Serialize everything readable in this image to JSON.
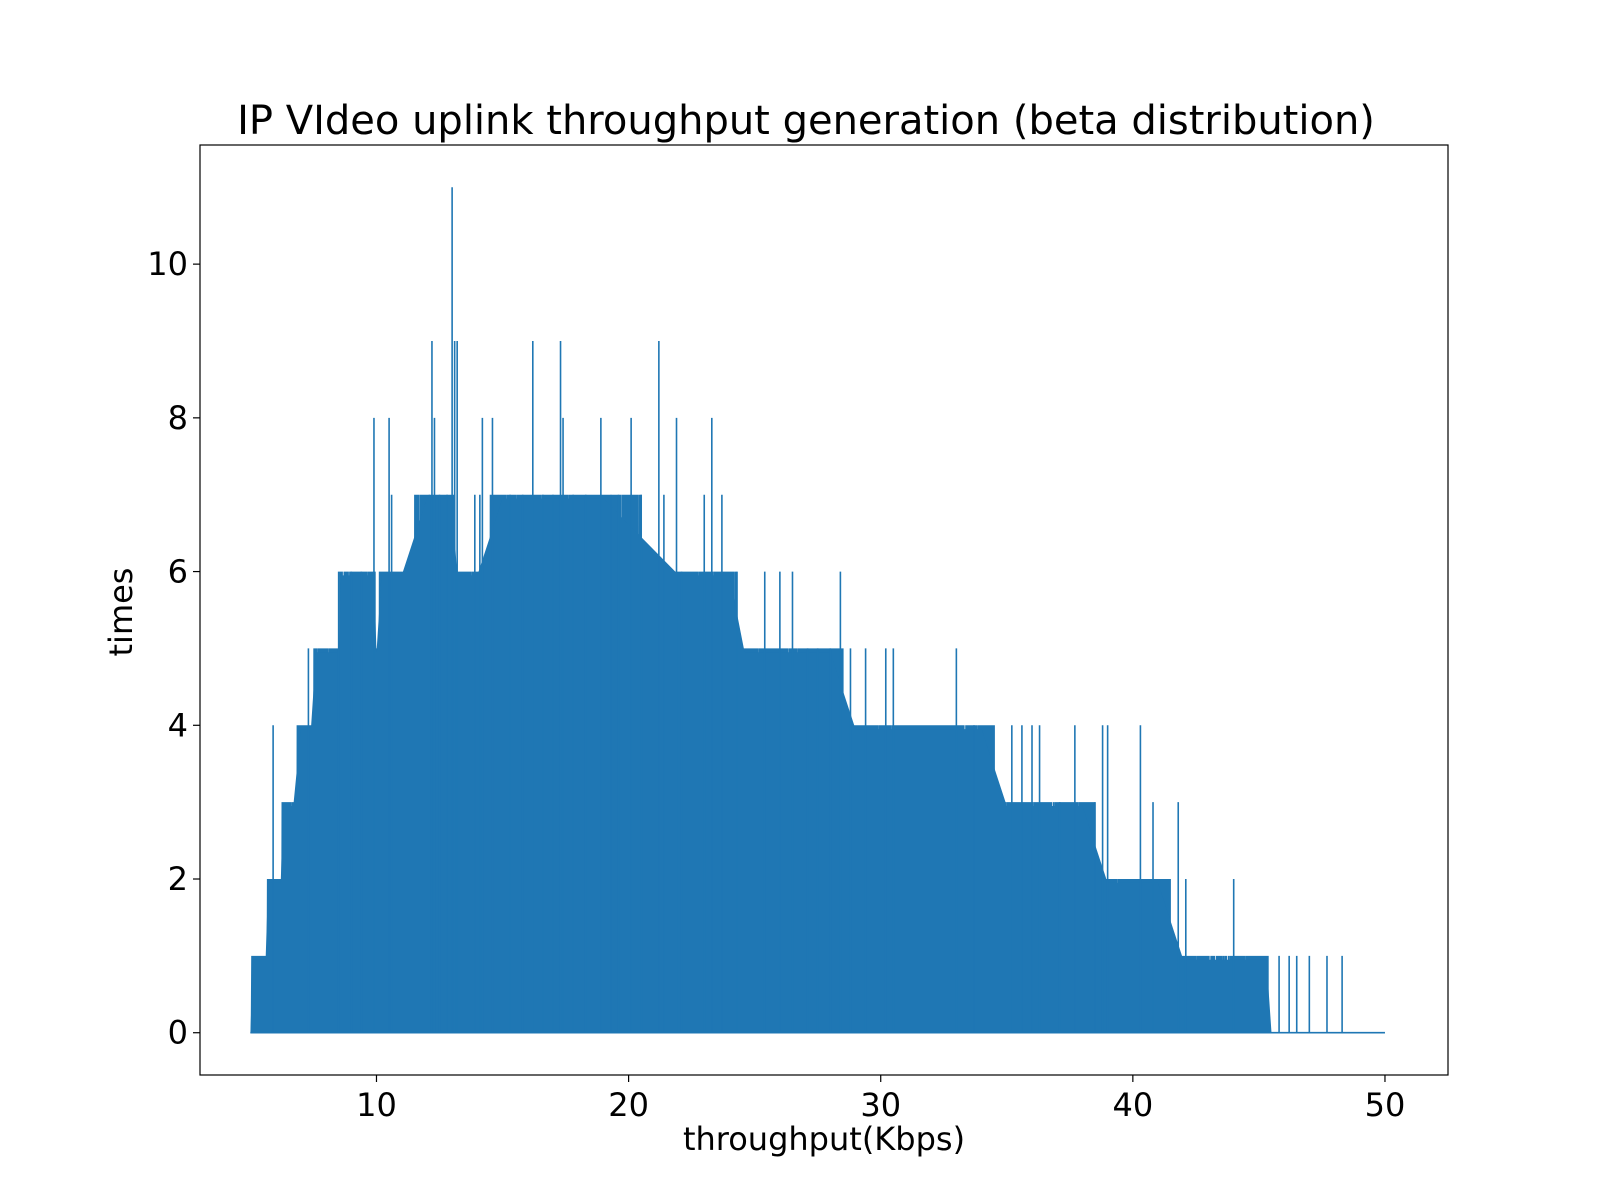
{
  "chart_data": {
    "type": "line",
    "title": "IP VIdeo uplink throughput generation (beta distribution)",
    "xlabel": "throughput(Kbps)",
    "ylabel": "times",
    "xlim": [
      3,
      52.5
    ],
    "ylim": [
      -0.55,
      11.55
    ],
    "x_ticks": [
      10,
      20,
      30,
      40,
      50
    ],
    "y_ticks": [
      0,
      2,
      4,
      6,
      8,
      10
    ],
    "x_tick_labels": [
      "10",
      "20",
      "30",
      "40",
      "50"
    ],
    "y_tick_labels": [
      "0",
      "2",
      "4",
      "6",
      "8",
      "10"
    ],
    "grid": false,
    "series": [
      {
        "color": "#1f77b4",
        "x_start": 5,
        "x_end": 50,
        "envelope": [
          [
            5.0,
            0
          ],
          [
            5.1,
            1
          ],
          [
            5.6,
            1
          ],
          [
            5.7,
            2
          ],
          [
            6.2,
            2
          ],
          [
            6.3,
            3
          ],
          [
            6.6,
            3
          ],
          [
            6.7,
            3
          ],
          [
            7.0,
            4
          ],
          [
            7.4,
            4
          ],
          [
            7.6,
            5
          ],
          [
            8.5,
            5
          ],
          [
            8.6,
            6
          ],
          [
            9.9,
            6
          ],
          [
            10.0,
            5
          ],
          [
            10.2,
            6
          ],
          [
            11.0,
            6
          ],
          [
            12.0,
            7
          ],
          [
            13.0,
            7
          ],
          [
            13.2,
            6
          ],
          [
            14.0,
            6
          ],
          [
            15.0,
            7
          ],
          [
            18.0,
            7
          ],
          [
            19.0,
            7
          ],
          [
            22.0,
            6
          ],
          [
            23.0,
            6
          ],
          [
            24.0,
            6
          ],
          [
            24.6,
            5
          ],
          [
            26.0,
            5
          ],
          [
            27.0,
            5
          ],
          [
            28.0,
            5
          ],
          [
            29.0,
            4
          ],
          [
            32.0,
            4
          ],
          [
            33.0,
            4
          ],
          [
            34.0,
            4
          ],
          [
            35.0,
            3
          ],
          [
            37.6,
            3
          ],
          [
            38.0,
            3
          ],
          [
            39.0,
            2
          ],
          [
            41.0,
            2
          ],
          [
            42.0,
            1
          ],
          [
            45.3,
            1
          ],
          [
            45.5,
            0
          ],
          [
            50.0,
            0
          ]
        ],
        "spikes": [
          [
            5.9,
            4
          ],
          [
            7.3,
            5
          ],
          [
            8.5,
            6
          ],
          [
            9.0,
            6
          ],
          [
            9.4,
            6
          ],
          [
            9.9,
            8
          ],
          [
            10.5,
            8
          ],
          [
            10.6,
            7
          ],
          [
            12.1,
            7
          ],
          [
            12.2,
            9
          ],
          [
            12.3,
            8
          ],
          [
            12.5,
            7
          ],
          [
            12.8,
            7
          ],
          [
            13.0,
            11
          ],
          [
            13.1,
            9
          ],
          [
            13.2,
            9
          ],
          [
            13.9,
            7
          ],
          [
            14.1,
            7
          ],
          [
            14.2,
            8
          ],
          [
            14.6,
            8
          ],
          [
            15.3,
            7
          ],
          [
            15.8,
            7
          ],
          [
            16.2,
            9
          ],
          [
            16.6,
            7
          ],
          [
            17.0,
            7
          ],
          [
            17.3,
            9
          ],
          [
            17.4,
            8
          ],
          [
            17.8,
            7
          ],
          [
            18.3,
            7
          ],
          [
            18.9,
            8
          ],
          [
            19.3,
            7
          ],
          [
            19.6,
            7
          ],
          [
            20.1,
            8
          ],
          [
            20.5,
            7
          ],
          [
            21.2,
            9
          ],
          [
            21.4,
            7
          ],
          [
            21.9,
            8
          ],
          [
            22.1,
            6
          ],
          [
            23.0,
            7
          ],
          [
            23.3,
            8
          ],
          [
            23.7,
            7
          ],
          [
            24.3,
            6
          ],
          [
            25.4,
            6
          ],
          [
            26.0,
            6
          ],
          [
            26.5,
            6
          ],
          [
            27.1,
            5
          ],
          [
            27.5,
            5
          ],
          [
            28.0,
            5
          ],
          [
            28.4,
            6
          ],
          [
            28.8,
            5
          ],
          [
            29.4,
            5
          ],
          [
            30.2,
            5
          ],
          [
            30.5,
            5
          ],
          [
            33.0,
            5
          ],
          [
            33.7,
            4
          ],
          [
            35.2,
            4
          ],
          [
            35.6,
            4
          ],
          [
            36.0,
            4
          ],
          [
            36.3,
            4
          ],
          [
            37.1,
            3
          ],
          [
            37.7,
            4
          ],
          [
            38.5,
            3
          ],
          [
            38.8,
            4
          ],
          [
            39.0,
            4
          ],
          [
            40.3,
            4
          ],
          [
            40.8,
            3
          ],
          [
            41.8,
            3
          ],
          [
            42.1,
            2
          ],
          [
            44.0,
            2
          ],
          [
            45.8,
            1
          ],
          [
            46.2,
            1
          ],
          [
            46.5,
            1
          ],
          [
            47.0,
            1
          ],
          [
            47.7,
            1
          ],
          [
            48.3,
            1
          ]
        ]
      }
    ]
  }
}
